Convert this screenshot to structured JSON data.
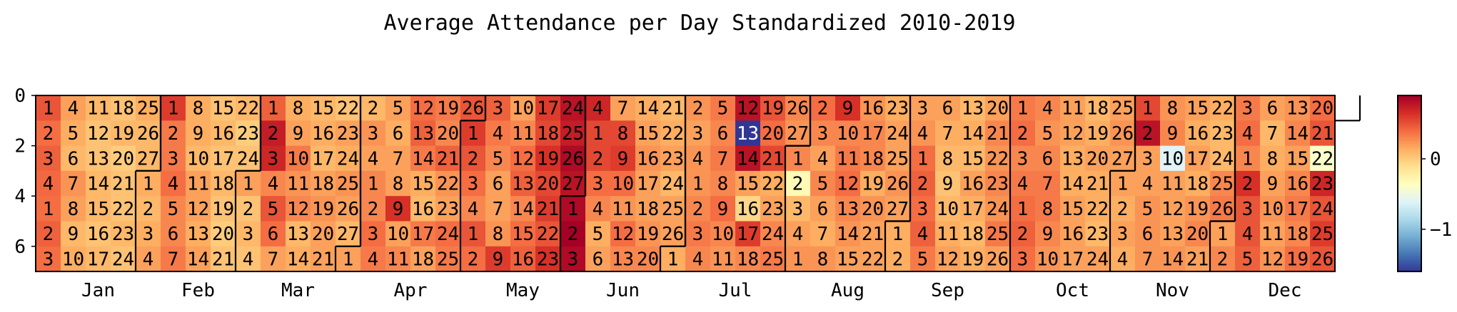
{
  "chart_data": {
    "type": "heatmap",
    "title": "Average Attendance per Day Standardized 2010-2019",
    "xlabel": "",
    "ylabel": "",
    "year_start_weekday": 0,
    "day_offset": 4,
    "y_ticks": [
      "0",
      "2",
      "4",
      "6"
    ],
    "month_labels": [
      "Jan",
      "Feb",
      "Mar",
      "Apr",
      "May",
      "Jun",
      "Jul",
      "Aug",
      "Sep",
      "Oct",
      "Nov",
      "Dec"
    ],
    "month_days": [
      31,
      28,
      31,
      30,
      31,
      30,
      31,
      31,
      30,
      31,
      30,
      31
    ],
    "colormap": "RdYlBu_r",
    "colorbar_ticks": [
      {
        "value": 0,
        "label": "0"
      },
      {
        "value": -1,
        "label": "−1"
      }
    ],
    "vmin": -1.6,
    "vmax": 0.9,
    "values": [
      [
        0.5,
        0.4,
        0.45,
        0.42,
        0.4,
        0.45,
        0.4
      ],
      [
        0.2,
        0.15,
        0.1,
        0.25,
        0.2,
        0.1,
        0.15
      ],
      [
        0.1,
        0.05,
        0.05,
        0.1,
        0.1,
        0.05,
        0.1
      ],
      [
        0.05,
        0.1,
        0.0,
        0.05,
        0.05,
        0.1,
        0.05
      ],
      [
        0.15,
        0.1,
        0.1,
        0.15,
        0.1,
        0.15,
        0.2
      ],
      [
        0.6,
        0.35,
        0.35,
        0.4,
        0.3,
        0.3,
        0.35
      ],
      [
        0.15,
        0.15,
        0.1,
        0.2,
        0.2,
        0.15,
        0.2
      ],
      [
        0.05,
        0.1,
        0.05,
        0.1,
        0.05,
        0.0,
        0.05
      ],
      [
        0.1,
        0.0,
        0.05,
        0.2,
        0.05,
        0.1,
        0.05
      ],
      [
        0.45,
        0.75,
        0.7,
        0.3,
        0.5,
        0.4,
        0.2
      ],
      [
        0.15,
        0.2,
        0.35,
        0.25,
        0.3,
        0.1,
        0.15
      ],
      [
        0.1,
        0.15,
        0.1,
        0.2,
        0.25,
        0.2,
        0.2
      ],
      [
        0.05,
        0.2,
        0.15,
        0.25,
        0.2,
        0.1,
        0.2
      ],
      [
        0.1,
        0.25,
        0.2,
        0.3,
        0.3,
        0.4,
        0.35
      ],
      [
        0.2,
        0.15,
        0.2,
        0.2,
        0.65,
        0.2,
        0.3
      ],
      [
        0.4,
        0.45,
        0.35,
        0.15,
        0.1,
        0.35,
        0.2
      ],
      [
        0.35,
        0.3,
        0.45,
        0.25,
        0.2,
        0.4,
        0.35
      ],
      [
        0.5,
        0.6,
        0.5,
        0.4,
        0.3,
        0.5,
        0.4
      ],
      [
        0.45,
        0.35,
        0.3,
        0.2,
        0.2,
        0.25,
        0.6
      ],
      [
        0.2,
        0.3,
        0.4,
        0.45,
        0.3,
        0.4,
        0.45
      ],
      [
        0.6,
        0.55,
        0.65,
        0.55,
        0.6,
        0.5,
        0.65
      ],
      [
        0.8,
        0.75,
        0.85,
        0.8,
        0.85,
        0.9,
        0.85
      ],
      [
        0.7,
        0.55,
        0.55,
        0.4,
        0.3,
        0.15,
        0.2
      ],
      [
        0.2,
        0.55,
        0.6,
        0.4,
        0.25,
        0.4,
        0.3
      ],
      [
        0.15,
        0.2,
        0.25,
        0.2,
        0.2,
        0.25,
        0.3
      ],
      [
        0.1,
        0.15,
        0.2,
        0.1,
        0.2,
        0.2,
        0.15
      ],
      [
        0.25,
        0.2,
        0.25,
        0.25,
        0.3,
        0.35,
        0.3
      ],
      [
        0.35,
        0.3,
        0.35,
        0.3,
        0.4,
        0.3,
        0.25
      ],
      [
        0.8,
        -1.6,
        0.8,
        0.2,
        -0.05,
        0.6,
        0.3
      ],
      [
        0.5,
        0.4,
        0.55,
        0.15,
        0.2,
        0.3,
        0.35
      ],
      [
        0.3,
        0.25,
        0.3,
        -0.3,
        0.1,
        0.2,
        0.25
      ],
      [
        0.4,
        0.3,
        0.2,
        0.3,
        0.2,
        0.15,
        0.25
      ],
      [
        0.65,
        0.3,
        0.35,
        0.4,
        0.3,
        0.25,
        0.2
      ],
      [
        0.25,
        0.3,
        0.3,
        0.15,
        0.25,
        0.2,
        0.2
      ],
      [
        0.15,
        0.2,
        0.2,
        0.25,
        0.2,
        0.15,
        0.15
      ],
      [
        0.2,
        0.25,
        0.4,
        0.45,
        0.4,
        0.45,
        0.35
      ],
      [
        0.2,
        0.15,
        0.1,
        0.05,
        0.1,
        0.15,
        0.2
      ],
      [
        0.1,
        0.15,
        0.1,
        0.2,
        0.15,
        0.1,
        0.15
      ],
      [
        0.2,
        0.3,
        0.25,
        0.3,
        0.25,
        0.35,
        0.2
      ],
      [
        0.35,
        0.4,
        0.3,
        0.35,
        0.4,
        0.45,
        0.4
      ],
      [
        0.3,
        0.25,
        0.3,
        0.35,
        0.35,
        0.3,
        0.25
      ],
      [
        0.2,
        0.2,
        0.15,
        0.15,
        0.2,
        0.2,
        0.2
      ],
      [
        0.1,
        0.15,
        0.2,
        0.15,
        0.15,
        0.1,
        0.2
      ],
      [
        0.2,
        0.25,
        0.2,
        0.2,
        0.15,
        0.2,
        0.15
      ],
      [
        0.55,
        0.8,
        0.2,
        0.2,
        0.25,
        0.25,
        0.25
      ],
      [
        0.25,
        0.3,
        -0.6,
        0.2,
        0.2,
        0.2,
        0.25
      ],
      [
        0.2,
        0.15,
        0.2,
        0.15,
        0.25,
        0.3,
        0.2
      ],
      [
        0.15,
        0.1,
        0.1,
        0.3,
        0.35,
        0.2,
        0.3
      ],
      [
        0.35,
        0.4,
        0.3,
        0.65,
        0.5,
        0.5,
        0.45
      ],
      [
        0.2,
        0.1,
        0.15,
        0.2,
        0.25,
        0.2,
        0.25
      ],
      [
        0.25,
        0.3,
        0.2,
        0.3,
        0.35,
        0.3,
        0.4
      ],
      [
        0.4,
        0.5,
        -0.4,
        0.7,
        0.5,
        0.6,
        0.5
      ]
    ]
  }
}
